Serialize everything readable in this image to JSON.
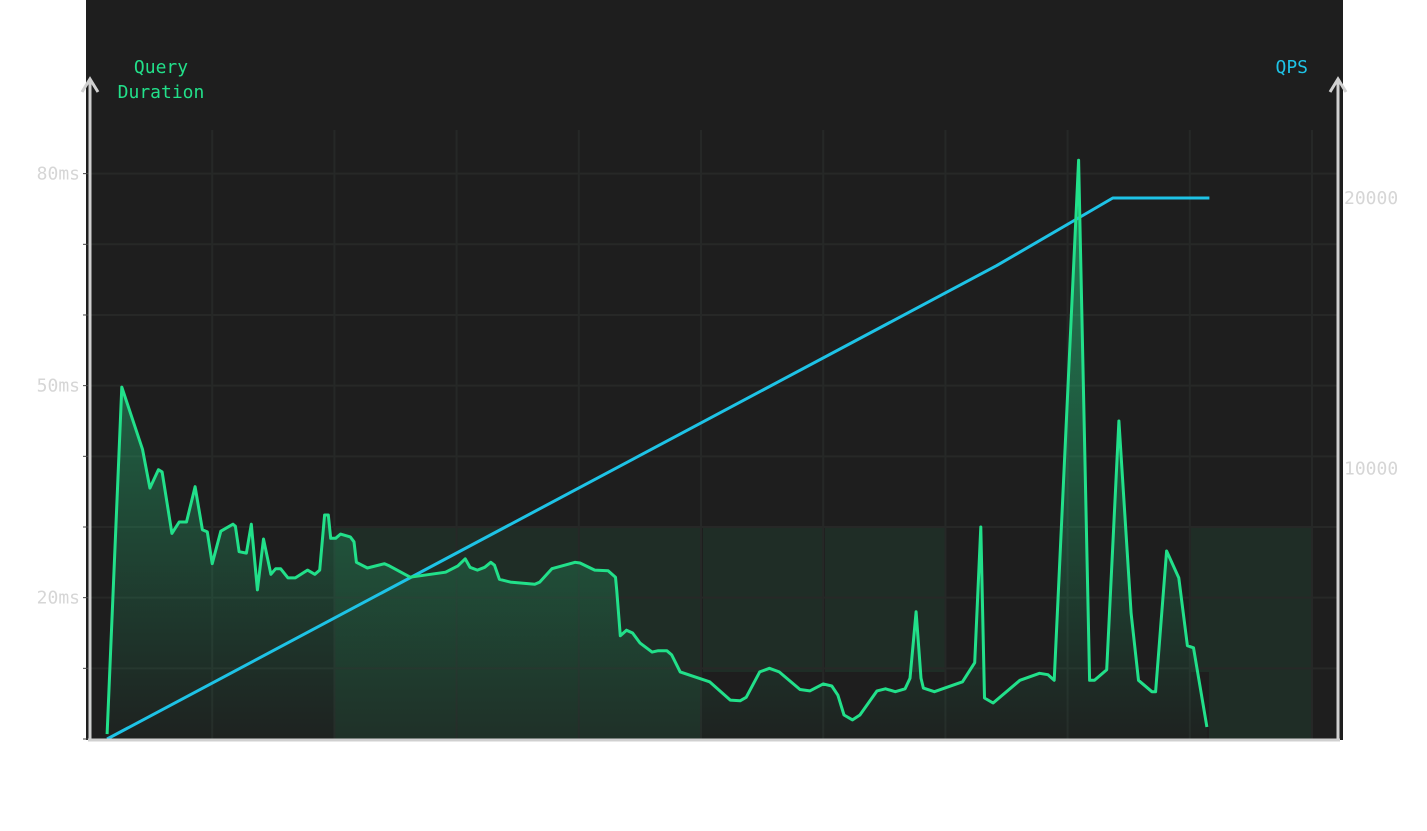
{
  "chart_data": {
    "type": "line",
    "title": "",
    "xlabel": "",
    "grid": true,
    "colors": {
      "duration": "#22e08a",
      "qps": "#1ec3e6",
      "background": "#1e1e1e",
      "axis": "#d0d0d0"
    },
    "y_left": {
      "label": "Query Duration",
      "label_lines": [
        "Query",
        "Duration"
      ],
      "unit": "ms",
      "ticks": [
        "20ms",
        "50ms",
        "80ms"
      ],
      "tick_values": [
        20,
        50,
        80
      ],
      "range": [
        0,
        92
      ]
    },
    "y_right": {
      "label": "QPS",
      "ticks": [
        "10000",
        "20000"
      ],
      "tick_values": [
        10000,
        20000
      ],
      "range": [
        0,
        24000
      ]
    },
    "xlim": [
      0,
      10.2
    ],
    "series": [
      {
        "name": "Query Duration",
        "axis": "left",
        "style": "area",
        "points": [
          [
            0.14,
            0.7
          ],
          [
            0.26,
            49.8
          ],
          [
            0.43,
            41.0
          ],
          [
            0.49,
            35.5
          ],
          [
            0.56,
            38.1
          ],
          [
            0.59,
            37.8
          ],
          [
            0.67,
            29.1
          ],
          [
            0.73,
            30.7
          ],
          [
            0.79,
            30.7
          ],
          [
            0.86,
            35.7
          ],
          [
            0.92,
            29.6
          ],
          [
            0.96,
            29.3
          ],
          [
            1.0,
            24.8
          ],
          [
            1.07,
            29.4
          ],
          [
            1.17,
            30.4
          ],
          [
            1.19,
            30.1
          ],
          [
            1.22,
            26.5
          ],
          [
            1.28,
            26.3
          ],
          [
            1.32,
            30.4
          ],
          [
            1.37,
            21.1
          ],
          [
            1.42,
            28.3
          ],
          [
            1.48,
            23.3
          ],
          [
            1.52,
            24.1
          ],
          [
            1.56,
            24.1
          ],
          [
            1.62,
            22.8
          ],
          [
            1.68,
            22.8
          ],
          [
            1.78,
            23.9
          ],
          [
            1.84,
            23.3
          ],
          [
            1.88,
            23.9
          ],
          [
            1.92,
            31.7
          ],
          [
            1.95,
            31.7
          ],
          [
            1.97,
            28.4
          ],
          [
            2.01,
            28.4
          ],
          [
            2.05,
            29.0
          ],
          [
            2.13,
            28.6
          ],
          [
            2.16,
            27.9
          ],
          [
            2.18,
            25.0
          ],
          [
            2.27,
            24.2
          ],
          [
            2.41,
            24.8
          ],
          [
            2.45,
            24.5
          ],
          [
            2.62,
            22.9
          ],
          [
            2.91,
            23.6
          ],
          [
            3.01,
            24.5
          ],
          [
            3.07,
            25.5
          ],
          [
            3.11,
            24.3
          ],
          [
            3.17,
            23.9
          ],
          [
            3.23,
            24.3
          ],
          [
            3.28,
            25.0
          ],
          [
            3.31,
            24.6
          ],
          [
            3.35,
            22.6
          ],
          [
            3.44,
            22.2
          ],
          [
            3.64,
            21.9
          ],
          [
            3.68,
            22.2
          ],
          [
            3.78,
            24.1
          ],
          [
            3.97,
            25.0
          ],
          [
            4.01,
            24.9
          ],
          [
            4.13,
            23.9
          ],
          [
            4.24,
            23.8
          ],
          [
            4.3,
            22.9
          ],
          [
            4.31,
            21.1
          ],
          [
            4.34,
            14.6
          ],
          [
            4.39,
            15.4
          ],
          [
            4.44,
            15.0
          ],
          [
            4.5,
            13.6
          ],
          [
            4.6,
            12.3
          ],
          [
            4.65,
            12.5
          ],
          [
            4.72,
            12.5
          ],
          [
            4.76,
            11.9
          ],
          [
            4.83,
            9.5
          ],
          [
            5.07,
            8.1
          ],
          [
            5.24,
            5.5
          ],
          [
            5.32,
            5.4
          ],
          [
            5.37,
            5.9
          ],
          [
            5.48,
            9.5
          ],
          [
            5.56,
            10.0
          ],
          [
            5.64,
            9.5
          ],
          [
            5.81,
            7.0
          ],
          [
            5.89,
            6.8
          ],
          [
            6.0,
            7.8
          ],
          [
            6.07,
            7.5
          ],
          [
            6.12,
            6.2
          ],
          [
            6.17,
            3.4
          ],
          [
            6.24,
            2.7
          ],
          [
            6.3,
            3.4
          ],
          [
            6.44,
            6.8
          ],
          [
            6.51,
            7.1
          ],
          [
            6.59,
            6.7
          ],
          [
            6.67,
            7.1
          ],
          [
            6.71,
            8.6
          ],
          [
            6.76,
            18.0
          ],
          [
            6.8,
            8.6
          ],
          [
            6.82,
            7.2
          ],
          [
            6.91,
            6.7
          ],
          [
            7.14,
            8.1
          ],
          [
            7.24,
            10.8
          ],
          [
            7.29,
            30.0
          ],
          [
            7.32,
            5.8
          ],
          [
            7.39,
            5.1
          ],
          [
            7.61,
            8.3
          ],
          [
            7.77,
            9.3
          ],
          [
            7.84,
            9.1
          ],
          [
            7.89,
            8.3
          ],
          [
            8.09,
            81.9
          ],
          [
            8.18,
            8.3
          ],
          [
            8.22,
            8.3
          ],
          [
            8.32,
            9.8
          ],
          [
            8.42,
            45.0
          ],
          [
            8.52,
            17.8
          ],
          [
            8.58,
            8.3
          ],
          [
            8.69,
            6.7
          ],
          [
            8.72,
            6.7
          ],
          [
            8.81,
            26.6
          ],
          [
            8.91,
            22.8
          ],
          [
            8.98,
            13.2
          ],
          [
            9.03,
            12.9
          ],
          [
            9.14,
            1.7
          ]
        ]
      },
      {
        "name": "QPS",
        "axis": "right",
        "style": "line",
        "points": [
          [
            0.14,
            0
          ],
          [
            7.42,
            17500
          ],
          [
            8.37,
            20000
          ],
          [
            9.16,
            20000
          ]
        ]
      }
    ]
  }
}
